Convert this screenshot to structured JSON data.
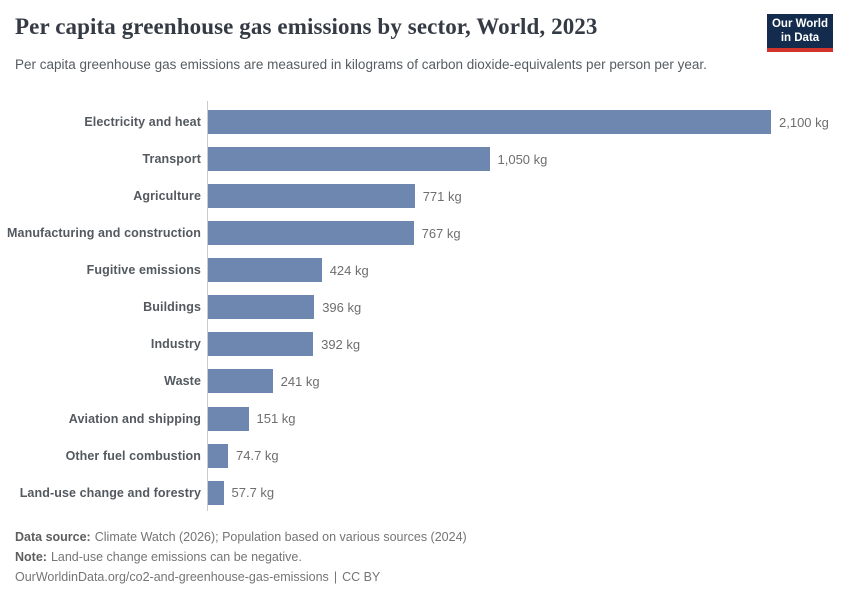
{
  "logo": {
    "line1": "Our World",
    "line2": "in Data",
    "bg_color": "#132b4d",
    "accent_color": "#d0342c"
  },
  "chart_data": {
    "type": "bar",
    "orientation": "horizontal",
    "title": "Per capita greenhouse gas emissions by sector, World, 2023",
    "subtitle": "Per capita greenhouse gas emissions are measured in kilograms of carbon dioxide-equivalents per person per year.",
    "categories": [
      "Electricity and heat",
      "Transport",
      "Agriculture",
      "Manufacturing and construction",
      "Fugitive emissions",
      "Buildings",
      "Industry",
      "Waste",
      "Aviation and shipping",
      "Other fuel combustion",
      "Land-use change and forestry"
    ],
    "values": [
      2100,
      1050,
      771,
      767,
      424,
      396,
      392,
      241,
      151,
      74.7,
      57.7
    ],
    "value_labels": [
      "2,100 kg",
      "1,050 kg",
      "771 kg",
      "767 kg",
      "424 kg",
      "396 kg",
      "392 kg",
      "241 kg",
      "151 kg",
      "74.7 kg",
      "57.7 kg"
    ],
    "unit": "kg",
    "xlim": [
      0,
      2100
    ],
    "bar_color": "#6e87b1",
    "grid": "off",
    "legend": "none"
  },
  "footer": {
    "data_source_label": "Data source:",
    "data_source_text": "Climate Watch (2026); Population based on various sources (2024)",
    "note_label": "Note:",
    "note_text": "Land-use change emissions can be negative.",
    "credit_url": "OurWorldinData.org/co2-and-greenhouse-gas-emissions",
    "separator": "|",
    "license": "CC BY"
  }
}
